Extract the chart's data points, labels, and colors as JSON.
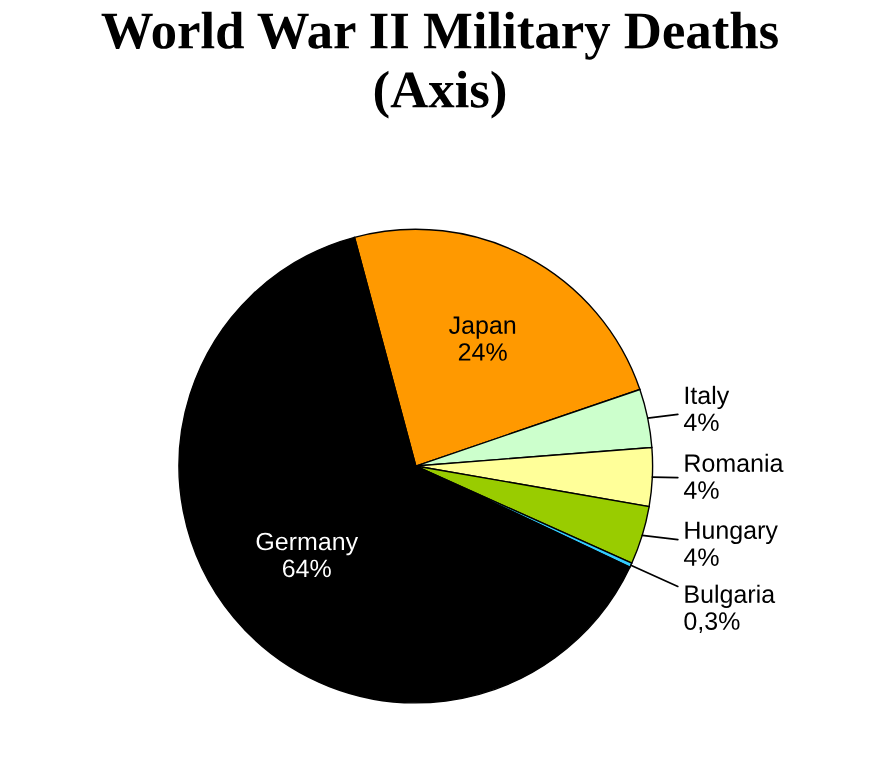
{
  "chart_data": {
    "type": "pie",
    "title": "World War II Military Deaths\n(Axis)",
    "categories": [
      "Japan",
      "Italy",
      "Romania",
      "Hungary",
      "Bulgaria",
      "Germany"
    ],
    "values": [
      24,
      4,
      4,
      4,
      0.3,
      64
    ],
    "value_labels": [
      "24%",
      "4%",
      "4%",
      "4%",
      "0,3%",
      "64%"
    ],
    "colors": [
      "#ff9900",
      "#ccffcc",
      "#ffff99",
      "#99cc00",
      "#33ccff",
      "#000000"
    ],
    "legend": false
  }
}
